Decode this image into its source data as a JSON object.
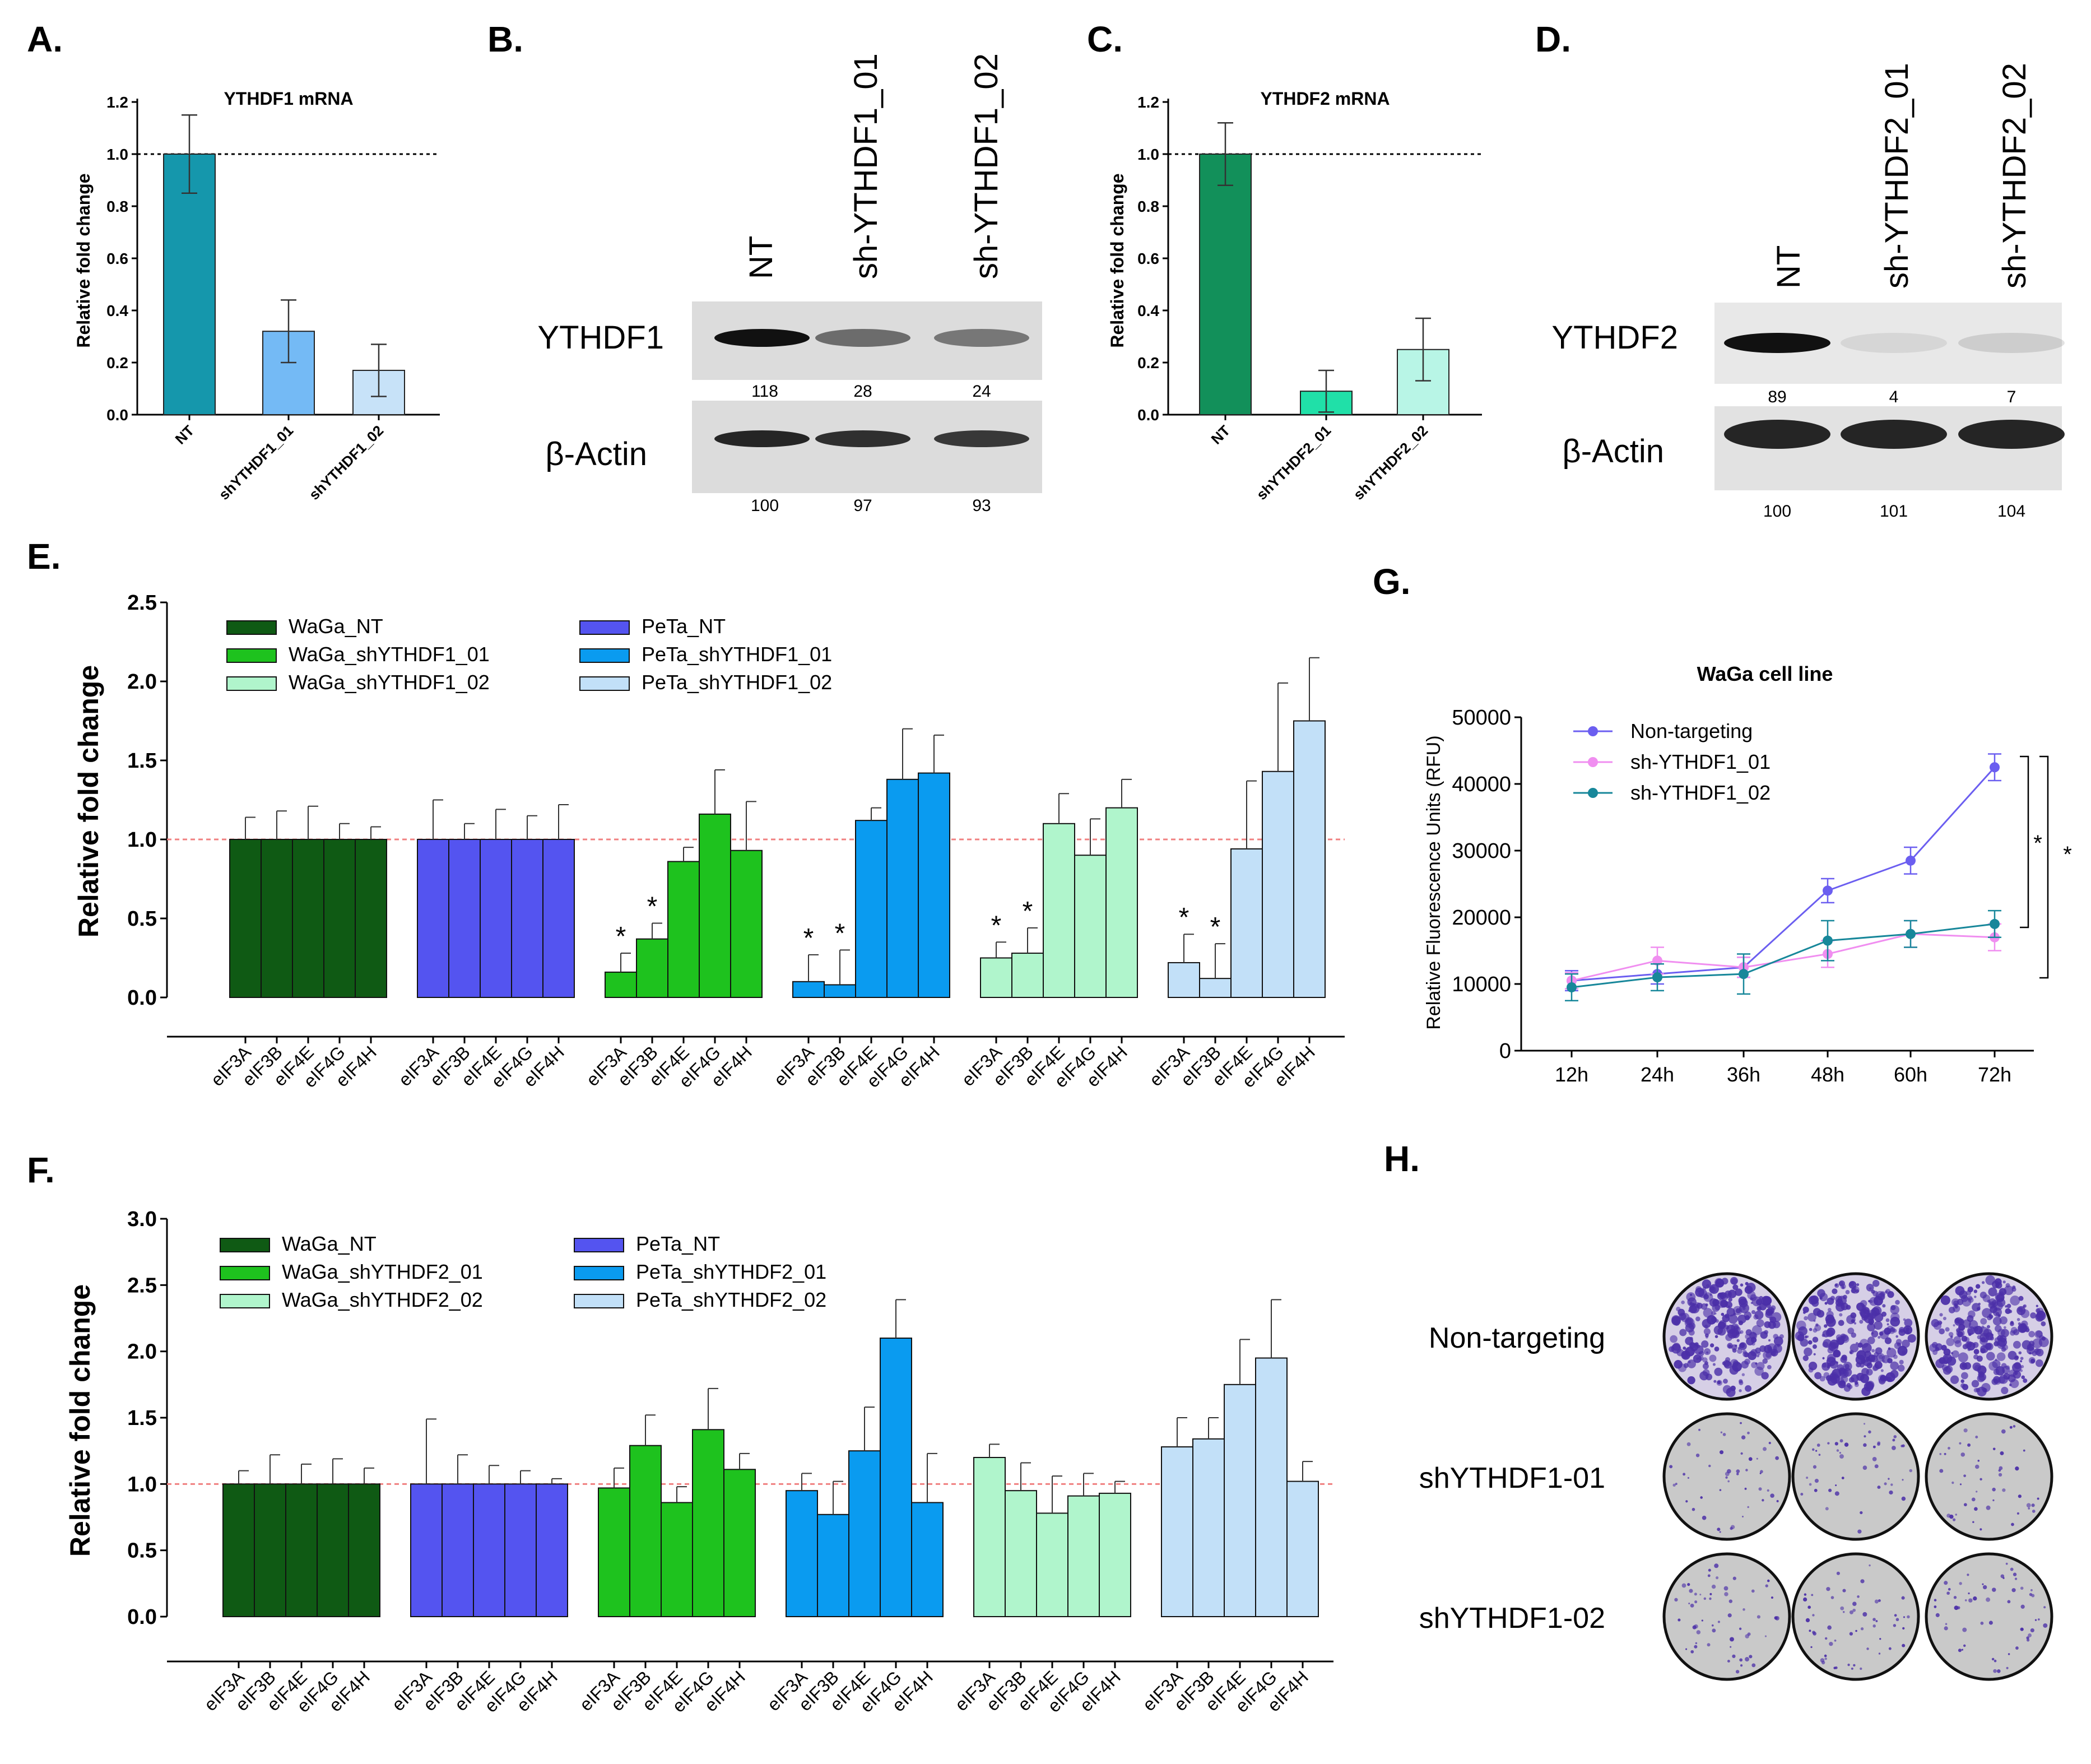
{
  "panel_letters": {
    "a": "A.",
    "b": "B.",
    "c": "C.",
    "d": "D.",
    "e": "E.",
    "f": "F.",
    "g": "G.",
    "h": "H."
  },
  "colors": {
    "waga_nt": "#0f5a14",
    "waga_sh01": "#1ec21e",
    "waga_sh02": "#b0f5cc",
    "peta_nt": "#5454f0",
    "peta_sh01": "#0a9bf0",
    "peta_sh02": "#c2e0f8",
    "a_nt": "#1597ac",
    "a_sh01": "#74baf5",
    "a_sh02": "#c7e2f8",
    "c_nt": "#12905a",
    "c_sh01": "#20e0a8",
    "c_sh02": "#b8f5e6",
    "g_nt": "#6b5ef0",
    "g_sh01": "#f08ef0",
    "g_sh02": "#17879a",
    "refline_red": "#f08080"
  },
  "chart_data": [
    {
      "id": "A",
      "type": "bar",
      "title": "YTHDF1 mRNA",
      "ylabel": "Relative fold change",
      "categories": [
        "NT",
        "shYTHDF1_01",
        "shYTHDF1_02"
      ],
      "values": [
        1.0,
        0.32,
        0.17
      ],
      "errors": [
        0.15,
        0.12,
        0.1
      ],
      "ylim": [
        0,
        1.2
      ],
      "yticks": [
        "0.0",
        "0.2",
        "0.4",
        "0.6",
        "0.8",
        "1.0",
        "1.2"
      ],
      "reference_line": 1.0
    },
    {
      "id": "C",
      "type": "bar",
      "title": "YTHDF2 mRNA",
      "ylabel": "Relative fold change",
      "categories": [
        "NT",
        "shYTHDF2_01",
        "shYTHDF2_02"
      ],
      "values": [
        1.0,
        0.09,
        0.25
      ],
      "errors": [
        0.12,
        0.08,
        0.12
      ],
      "ylim": [
        0,
        1.2
      ],
      "yticks": [
        "0.0",
        "0.2",
        "0.4",
        "0.6",
        "0.8",
        "1.0",
        "1.2"
      ],
      "reference_line": 1.0
    },
    {
      "id": "E",
      "type": "bar",
      "ylabel": "Relative fold change",
      "ylim": [
        0,
        2.5
      ],
      "yticks": [
        "0.0",
        "0.5",
        "1.0",
        "1.5",
        "2.0",
        "2.5"
      ],
      "reference_line": 1.0,
      "categories": [
        "eIF3A",
        "eIF3B",
        "eIF4E",
        "eIF4G",
        "eIF4H"
      ],
      "legend": [
        "WaGa_NT",
        "WaGa_shYTHDF1_01",
        "WaGa_shYTHDF1_02",
        "PeTa_NT",
        "PeTa_shYTHDF1_01",
        "PeTa_shYTHDF1_02"
      ],
      "series": [
        {
          "name": "WaGa_NT",
          "values": [
            1.0,
            1.0,
            1.0,
            1.0,
            1.0
          ],
          "errors": [
            0.14,
            0.18,
            0.21,
            0.1,
            0.08
          ],
          "stars": [
            false,
            false,
            false,
            false,
            false
          ]
        },
        {
          "name": "PeTa_NT",
          "values": [
            1.0,
            1.0,
            1.0,
            1.0,
            1.0
          ],
          "errors": [
            0.25,
            0.1,
            0.19,
            0.15,
            0.22
          ],
          "stars": [
            false,
            false,
            false,
            false,
            false
          ]
        },
        {
          "name": "WaGa_shYTHDF1_01",
          "values": [
            0.16,
            0.37,
            0.86,
            1.16,
            0.93
          ],
          "errors": [
            0.12,
            0.1,
            0.09,
            0.28,
            0.31
          ],
          "stars": [
            true,
            true,
            false,
            false,
            false
          ]
        },
        {
          "name": "PeTa_shYTHDF1_01",
          "values": [
            0.1,
            0.08,
            1.12,
            1.38,
            1.42
          ],
          "errors": [
            0.17,
            0.22,
            0.08,
            0.32,
            0.24
          ],
          "stars": [
            true,
            true,
            false,
            false,
            false
          ]
        },
        {
          "name": "WaGa_shYTHDF1_02",
          "values": [
            0.25,
            0.28,
            1.1,
            0.9,
            1.2
          ],
          "errors": [
            0.1,
            0.16,
            0.19,
            0.23,
            0.18
          ],
          "stars": [
            true,
            true,
            false,
            false,
            false
          ]
        },
        {
          "name": "PeTa_shYTHDF1_02",
          "values": [
            0.22,
            0.12,
            0.94,
            1.43,
            1.75
          ],
          "errors": [
            0.18,
            0.22,
            0.43,
            0.56,
            0.4
          ],
          "stars": [
            true,
            true,
            false,
            false,
            false
          ]
        }
      ],
      "star_label": "*"
    },
    {
      "id": "F",
      "type": "bar",
      "ylabel": "Relative fold change",
      "ylim": [
        0,
        3.0
      ],
      "yticks": [
        "0.0",
        "0.5",
        "1.0",
        "1.5",
        "2.0",
        "2.5",
        "3.0"
      ],
      "reference_line": 1.0,
      "categories": [
        "eIF3A",
        "eIF3B",
        "eIF4E",
        "eIF4G",
        "eIF4H"
      ],
      "legend": [
        "WaGa_NT",
        "WaGa_shYTHDF2_01",
        "WaGa_shYTHDF2_02",
        "PeTa_NT",
        "PeTa_shYTHDF2_01",
        "PeTa_shYTHDF2_02"
      ],
      "series": [
        {
          "name": "WaGa_NT",
          "values": [
            1.0,
            1.0,
            1.0,
            1.0,
            1.0
          ],
          "errors": [
            0.1,
            0.22,
            0.15,
            0.19,
            0.12
          ]
        },
        {
          "name": "PeTa_NT",
          "values": [
            1.0,
            1.0,
            1.0,
            1.0,
            1.0
          ],
          "errors": [
            0.49,
            0.22,
            0.14,
            0.1,
            0.04
          ]
        },
        {
          "name": "WaGa_shYTHDF2_01",
          "values": [
            0.97,
            1.29,
            0.86,
            1.41,
            1.11
          ],
          "errors": [
            0.15,
            0.23,
            0.12,
            0.31,
            0.12
          ]
        },
        {
          "name": "PeTa_shYTHDF2_01",
          "values": [
            0.95,
            0.77,
            1.25,
            2.1,
            0.86
          ],
          "errors": [
            0.13,
            0.25,
            0.33,
            0.29,
            0.37
          ]
        },
        {
          "name": "WaGa_shYTHDF2_02",
          "values": [
            1.2,
            0.95,
            0.78,
            0.91,
            0.93
          ],
          "errors": [
            0.1,
            0.21,
            0.28,
            0.17,
            0.09
          ]
        },
        {
          "name": "PeTa_shYTHDF2_02",
          "values": [
            1.28,
            1.34,
            1.75,
            1.95,
            1.02
          ],
          "errors": [
            0.22,
            0.16,
            0.34,
            0.44,
            0.15
          ]
        }
      ]
    },
    {
      "id": "G",
      "type": "line",
      "title": "WaGa cell line",
      "ylabel": "Relative Fluorescence Units (RFU)",
      "x": [
        "12h",
        "24h",
        "36h",
        "48h",
        "60h",
        "72h"
      ],
      "ylim": [
        0,
        50000
      ],
      "yticks": [
        "0",
        "10000",
        "20000",
        "30000",
        "40000",
        "50000"
      ],
      "series": [
        {
          "name": "Non-targeting",
          "values": [
            10500,
            11500,
            12500,
            24000,
            28500,
            42500
          ],
          "errors": [
            1500,
            1500,
            1500,
            1800,
            2000,
            2000
          ]
        },
        {
          "name": "sh-YTHDF1_01",
          "values": [
            10500,
            13500,
            12500,
            14500,
            17500,
            17000
          ],
          "errors": [
            1200,
            2000,
            1500,
            2000,
            2000,
            2000
          ]
        },
        {
          "name": "sh-YTHDF1_02",
          "values": [
            9500,
            11000,
            11500,
            16500,
            17500,
            19000
          ],
          "errors": [
            2000,
            2000,
            3000,
            3000,
            2000,
            2000
          ]
        }
      ],
      "sig_labels": [
        "*",
        "*"
      ]
    }
  ],
  "blots": {
    "b": {
      "lanes": [
        "NT",
        "sh-YTHDF1_01",
        "sh-YTHDF1_02"
      ],
      "target_label": "YTHDF1",
      "control_label": "β-Actin",
      "target_quant": [
        "118",
        "28",
        "24"
      ],
      "control_quant": [
        "100",
        "97",
        "93"
      ],
      "target_intensity": [
        1.0,
        0.55,
        0.5
      ],
      "control_intensity": [
        1.0,
        0.95,
        0.9
      ]
    },
    "d": {
      "lanes": [
        "NT",
        "sh-YTHDF2_01",
        "sh-YTHDF2_02"
      ],
      "target_label": "YTHDF2",
      "control_label": "β-Actin",
      "target_quant": [
        "89",
        "4",
        "7"
      ],
      "control_quant": [
        "100",
        "101",
        "104"
      ],
      "target_intensity": [
        1.0,
        0.08,
        0.12
      ],
      "control_intensity": [
        1.0,
        1.0,
        1.0
      ]
    }
  },
  "plates": {
    "rows": [
      "Non-targeting",
      "shYTHDF1-01",
      "shYTHDF1-02"
    ],
    "colony_density": [
      1.0,
      0.18,
      0.22
    ]
  }
}
